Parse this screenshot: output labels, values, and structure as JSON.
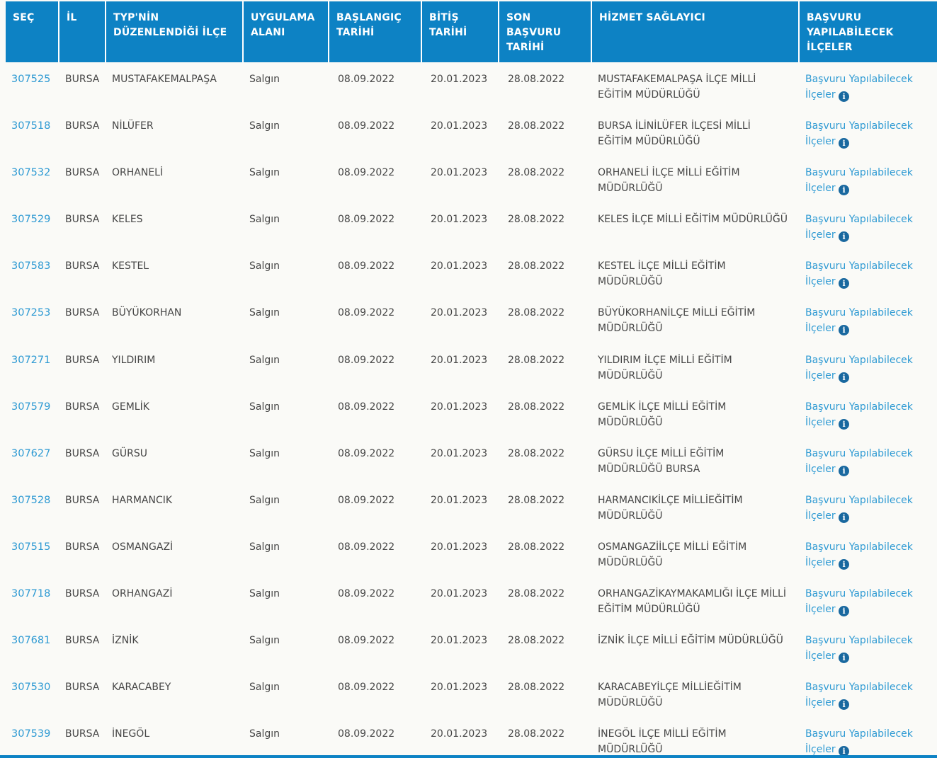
{
  "theme": {
    "header_bg": "#0d82c4",
    "link_color": "#2e9ad3",
    "info_icon_bg": "#19689f",
    "body_text": "#464646",
    "page_bg": "#fafaf7"
  },
  "icons": {
    "info_glyph": "i"
  },
  "table": {
    "columns": [
      {
        "label": "SEÇ"
      },
      {
        "label": "İL"
      },
      {
        "label": "TYP'NİN DÜZENLENDİĞİ İLÇE"
      },
      {
        "label": "UYGULAMA ALANI"
      },
      {
        "label": "BAŞLANGIÇ TARİHİ"
      },
      {
        "label": "BİTİŞ TARİHİ"
      },
      {
        "label": "SON BAŞVURU TARİHİ"
      },
      {
        "label": "HİZMET SAĞLAYICI"
      },
      {
        "label": "BAŞVURU YAPILABİLECEK İLÇELER"
      }
    ],
    "row_link_label": "Başvuru Yapılabilecek İlçeler",
    "rows": [
      {
        "id": "307525",
        "il": "BURSA",
        "district": "MUSTAFAKEMALPAŞA",
        "area": "Salgın",
        "start_date": "08.09.2022",
        "end_date": "20.01.2023",
        "deadline": "28.08.2022",
        "provider": "MUSTAFAKEMALPAŞA İLÇE MİLLİ EĞİTİM MÜDÜRLÜĞÜ"
      },
      {
        "id": "307518",
        "il": "BURSA",
        "district": "NİLÜFER",
        "area": "Salgın",
        "start_date": "08.09.2022",
        "end_date": "20.01.2023",
        "deadline": "28.08.2022",
        "provider": "BURSA İLİNİLÜFER İLÇESİ MİLLİ EĞİTİM MÜDÜRLÜĞÜ"
      },
      {
        "id": "307532",
        "il": "BURSA",
        "district": "ORHANELİ",
        "area": "Salgın",
        "start_date": "08.09.2022",
        "end_date": "20.01.2023",
        "deadline": "28.08.2022",
        "provider": "ORHANELİ İLÇE MİLLİ EĞİTİM MÜDÜRLÜĞÜ"
      },
      {
        "id": "307529",
        "il": "BURSA",
        "district": "KELES",
        "area": "Salgın",
        "start_date": "08.09.2022",
        "end_date": "20.01.2023",
        "deadline": "28.08.2022",
        "provider": "KELES İLÇE MİLLİ EĞİTİM MÜDÜRLÜĞÜ"
      },
      {
        "id": "307583",
        "il": "BURSA",
        "district": "KESTEL",
        "area": "Salgın",
        "start_date": "08.09.2022",
        "end_date": "20.01.2023",
        "deadline": "28.08.2022",
        "provider": "KESTEL İLÇE MİLLİ EĞİTİM MÜDÜRLÜĞÜ"
      },
      {
        "id": "307253",
        "il": "BURSA",
        "district": "BÜYÜKORHAN",
        "area": "Salgın",
        "start_date": "08.09.2022",
        "end_date": "20.01.2023",
        "deadline": "28.08.2022",
        "provider": "BÜYÜKORHANİLÇE MİLLİ EĞİTİM MÜDÜRLÜĞÜ"
      },
      {
        "id": "307271",
        "il": "BURSA",
        "district": "YILDIRIM",
        "area": "Salgın",
        "start_date": "08.09.2022",
        "end_date": "20.01.2023",
        "deadline": "28.08.2022",
        "provider": "YILDIRIM İLÇE MİLLİ EĞİTİM MÜDÜRLÜĞÜ"
      },
      {
        "id": "307579",
        "il": "BURSA",
        "district": "GEMLİK",
        "area": "Salgın",
        "start_date": "08.09.2022",
        "end_date": "20.01.2023",
        "deadline": "28.08.2022",
        "provider": "GEMLİK İLÇE MİLLİ EĞİTİM MÜDÜRLÜĞÜ"
      },
      {
        "id": "307627",
        "il": "BURSA",
        "district": "GÜRSU",
        "area": "Salgın",
        "start_date": "08.09.2022",
        "end_date": "20.01.2023",
        "deadline": "28.08.2022",
        "provider": "GÜRSU İLÇE MİLLİ EĞİTİM MÜDÜRLÜĞÜ BURSA"
      },
      {
        "id": "307528",
        "il": "BURSA",
        "district": "HARMANCIK",
        "area": "Salgın",
        "start_date": "08.09.2022",
        "end_date": "20.01.2023",
        "deadline": "28.08.2022",
        "provider": "HARMANCIKİLÇE MİLLİEĞİTİM MÜDÜRLÜĞÜ"
      },
      {
        "id": "307515",
        "il": "BURSA",
        "district": "OSMANGAZİ",
        "area": "Salgın",
        "start_date": "08.09.2022",
        "end_date": "20.01.2023",
        "deadline": "28.08.2022",
        "provider": "OSMANGAZİİLÇE MİLLİ EĞİTİM MÜDÜRLÜĞÜ"
      },
      {
        "id": "307718",
        "il": "BURSA",
        "district": "ORHANGAZİ",
        "area": "Salgın",
        "start_date": "08.09.2022",
        "end_date": "20.01.2023",
        "deadline": "28.08.2022",
        "provider": "ORHANGAZİKAYMAKAMLIĞI İLÇE MİLLİ EĞİTİM MÜDÜRLÜĞÜ"
      },
      {
        "id": "307681",
        "il": "BURSA",
        "district": "İZNİK",
        "area": "Salgın",
        "start_date": "08.09.2022",
        "end_date": "20.01.2023",
        "deadline": "28.08.2022",
        "provider": "İZNİK İLÇE MİLLİ EĞİTİM MÜDÜRLÜĞÜ"
      },
      {
        "id": "307530",
        "il": "BURSA",
        "district": "KARACABEY",
        "area": "Salgın",
        "start_date": "08.09.2022",
        "end_date": "20.01.2023",
        "deadline": "28.08.2022",
        "provider": "KARACABEYİLÇE MİLLİEĞİTİM MÜDÜRLÜĞÜ"
      },
      {
        "id": "307539",
        "il": "BURSA",
        "district": "İNEGÖL",
        "area": "Salgın",
        "start_date": "08.09.2022",
        "end_date": "20.01.2023",
        "deadline": "28.08.2022",
        "provider": "İNEGÖL İLÇE MİLLİ EĞİTİM MÜDÜRLÜĞÜ"
      }
    ]
  }
}
